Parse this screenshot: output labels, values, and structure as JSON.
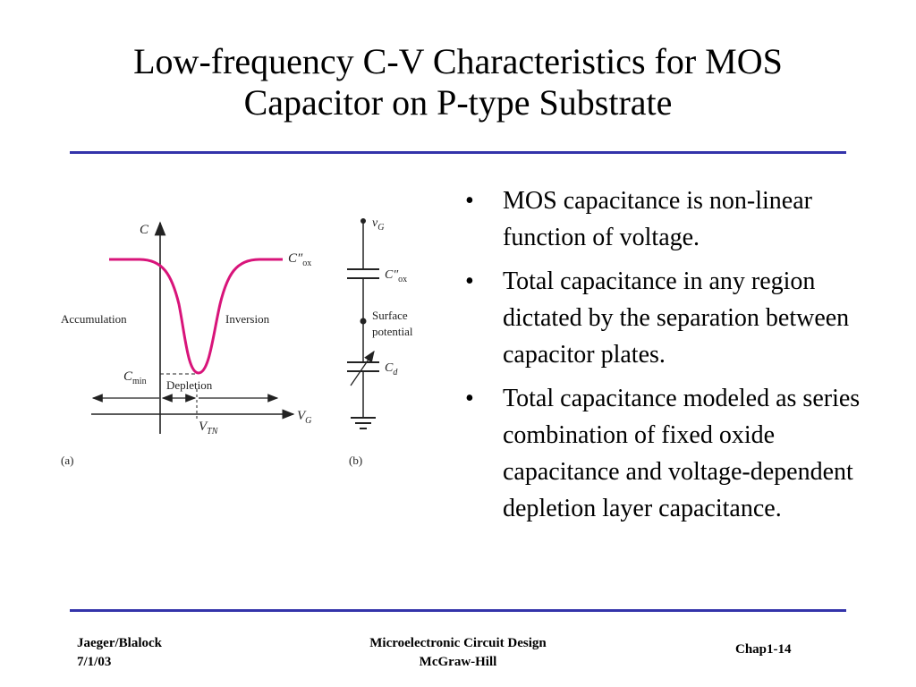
{
  "title": {
    "line1": "Low-frequency C-V Characteristics for MOS",
    "line2": "Capacitor on P-type Substrate"
  },
  "bullets": [
    "MOS capacitance is non-linear function of voltage.",
    "Total capacitance in any region dictated by the separation between capacitor plates.",
    "Total capacitance modeled as series combination of fixed oxide capacitance and voltage-dependent depletion layer capacitance."
  ],
  "bullet_glyph": "•",
  "figure_a": {
    "axis_c": "C",
    "axis_vg": "V",
    "axis_vg_sub": "G",
    "cox": "C″",
    "cox_sub": "ox",
    "accumulation": "Accumulation",
    "inversion": "Inversion",
    "cmin": "C",
    "cmin_sub": "min",
    "depletion": "Depletion",
    "vtn": "V",
    "vtn_sub": "TN",
    "caption": "(a)",
    "curve_color": "#d8147a"
  },
  "figure_b": {
    "vg": "v",
    "vg_sub": "G",
    "cox": "C″",
    "cox_sub": "ox",
    "surface": "Surface",
    "potential": "potential",
    "cd": "C",
    "cd_sub": "d",
    "caption": "(b)"
  },
  "footer": {
    "authors": "Jaeger/Blalock",
    "date": "7/1/03",
    "book": "Microelectronic Circuit Design",
    "publisher": "McGraw-Hill",
    "page": "Chap1-14"
  },
  "colors": {
    "rule": "#3333aa",
    "curve": "#d8147a"
  }
}
